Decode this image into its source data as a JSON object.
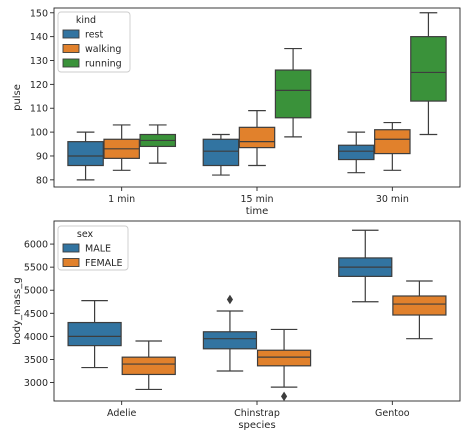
{
  "chart_data": [
    {
      "type": "box",
      "xlabel": "time",
      "ylabel": "pulse",
      "ylim": [
        77,
        152
      ],
      "yticks": [
        80,
        90,
        100,
        110,
        120,
        130,
        140,
        150
      ],
      "categories": [
        "1 min",
        "15 min",
        "30 min"
      ],
      "legend": {
        "title": "kind",
        "placement": "top-left"
      },
      "series": [
        {
          "name": "rest",
          "color": "#3274a1",
          "boxes": [
            {
              "whislo": 80,
              "q1": 86,
              "med": 90,
              "q3": 96,
              "whishi": 100,
              "fliers": []
            },
            {
              "whislo": 82,
              "q1": 86,
              "med": 92,
              "q3": 97,
              "whishi": 99,
              "fliers": []
            },
            {
              "whislo": 83,
              "q1": 88.5,
              "med": 92,
              "q3": 94.5,
              "whishi": 100,
              "fliers": []
            }
          ]
        },
        {
          "name": "walking",
          "color": "#e1812c",
          "boxes": [
            {
              "whislo": 84,
              "q1": 89,
              "med": 93,
              "q3": 97,
              "whishi": 103,
              "fliers": []
            },
            {
              "whislo": 86,
              "q1": 93.5,
              "med": 96,
              "q3": 102,
              "whishi": 109,
              "fliers": []
            },
            {
              "whislo": 84,
              "q1": 91,
              "med": 97,
              "q3": 101,
              "whishi": 104,
              "fliers": []
            }
          ]
        },
        {
          "name": "running",
          "color": "#3a923a",
          "boxes": [
            {
              "whislo": 87,
              "q1": 94,
              "med": 96.5,
              "q3": 99,
              "whishi": 103,
              "fliers": []
            },
            {
              "whislo": 98,
              "q1": 106,
              "med": 117.5,
              "q3": 126,
              "whishi": 135,
              "fliers": []
            },
            {
              "whislo": 99,
              "q1": 113,
              "med": 125,
              "q3": 140,
              "whishi": 150,
              "fliers": []
            }
          ]
        }
      ]
    },
    {
      "type": "box",
      "xlabel": "species",
      "ylabel": "body_mass_g",
      "ylim": [
        2600,
        6500
      ],
      "yticks": [
        3000,
        3500,
        4000,
        4500,
        5000,
        5500,
        6000
      ],
      "categories": [
        "Adelie",
        "Chinstrap",
        "Gentoo"
      ],
      "legend": {
        "title": "sex",
        "placement": "top-left"
      },
      "series": [
        {
          "name": "MALE",
          "color": "#3274a1",
          "boxes": [
            {
              "whislo": 3325,
              "q1": 3800,
              "med": 4000,
              "q3": 4300,
              "whishi": 4775,
              "fliers": []
            },
            {
              "whislo": 3250,
              "q1": 3731,
              "med": 3950,
              "q3": 4100,
              "whishi": 4550,
              "fliers": [
                4800
              ]
            },
            {
              "whislo": 4750,
              "q1": 5300,
              "med": 5500,
              "q3": 5700,
              "whishi": 6300,
              "fliers": []
            }
          ]
        },
        {
          "name": "FEMALE",
          "color": "#e1812c",
          "boxes": [
            {
              "whislo": 2850,
              "q1": 3175,
              "med": 3400,
              "q3": 3550,
              "whishi": 3900,
              "fliers": []
            },
            {
              "whislo": 2900,
              "q1": 3362,
              "med": 3550,
              "q3": 3700,
              "whishi": 4150,
              "fliers": [
                2700
              ]
            },
            {
              "whislo": 3950,
              "q1": 4463,
              "med": 4700,
              "q3": 4875,
              "whishi": 5200,
              "fliers": []
            }
          ]
        }
      ]
    }
  ]
}
